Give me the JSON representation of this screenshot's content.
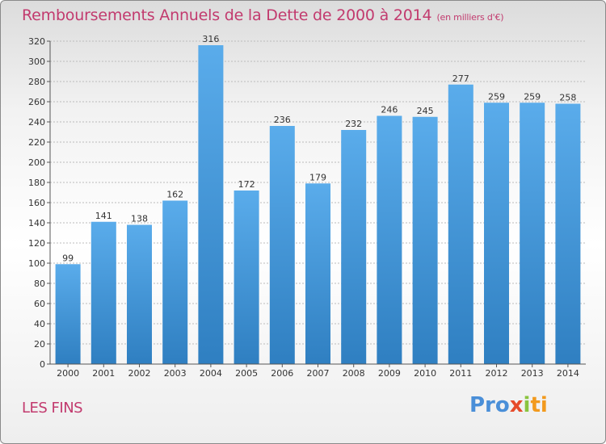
{
  "header": {
    "title": "Remboursements Annuels de la Dette de 2000 à 2014",
    "subtitle": "(en milliers d'€)"
  },
  "footer": {
    "town": "LES FINS",
    "logo_parts": [
      "Pro",
      "x",
      "i",
      "ti"
    ]
  },
  "colors": {
    "title": "#c23a6e",
    "bar_top": "#5aaceb",
    "bar_bottom": "#2f7fc1",
    "grid": "#bbbbbb"
  },
  "chart_data": {
    "type": "bar",
    "title": "Remboursements Annuels de la Dette de 2000 à 2014",
    "xlabel": "",
    "ylabel": "",
    "ylim": [
      0,
      320
    ],
    "ytick_step": 20,
    "grid": true,
    "categories": [
      "2000",
      "2001",
      "2002",
      "2003",
      "2004",
      "2005",
      "2006",
      "2007",
      "2008",
      "2009",
      "2010",
      "2011",
      "2012",
      "2013",
      "2014"
    ],
    "values": [
      99,
      141,
      138,
      162,
      316,
      172,
      236,
      179,
      232,
      246,
      245,
      277,
      259,
      259,
      258
    ]
  }
}
